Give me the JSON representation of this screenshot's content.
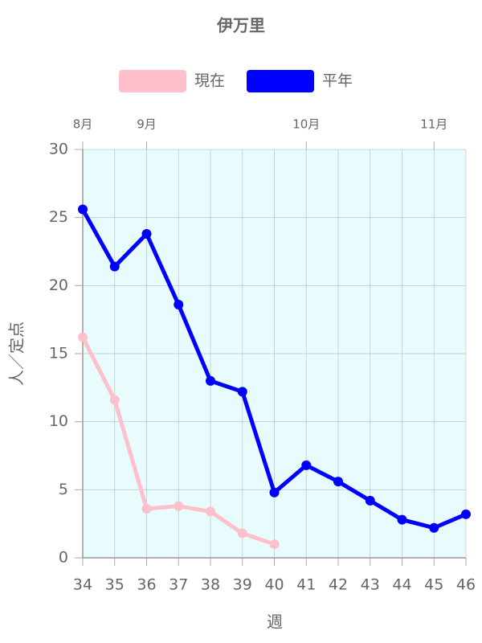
{
  "chart_data": {
    "type": "line",
    "title": "伊万里",
    "x_label": "週",
    "y_label": "人／定点",
    "x": [
      34,
      35,
      36,
      37,
      38,
      39,
      40,
      41,
      42,
      43,
      44,
      45,
      46
    ],
    "series": [
      {
        "name": "現在",
        "color": "#ffc0cb",
        "values": [
          16.2,
          11.6,
          3.6,
          3.8,
          3.4,
          1.8,
          1.0,
          null,
          null,
          null,
          null,
          null,
          null
        ]
      },
      {
        "name": "平年",
        "color": "#0000ff",
        "values": [
          25.6,
          21.4,
          23.8,
          18.6,
          13.0,
          12.2,
          4.8,
          6.8,
          5.6,
          4.2,
          2.8,
          2.2,
          3.2
        ]
      }
    ],
    "xlim": [
      34,
      46
    ],
    "xticks": [
      34,
      35,
      36,
      37,
      38,
      39,
      40,
      41,
      42,
      43,
      44,
      45,
      46
    ],
    "ylim": [
      0,
      30
    ],
    "yticks": [
      0,
      5,
      10,
      15,
      20,
      25,
      30
    ],
    "top_ticks": [
      {
        "value": 34,
        "label": "8月"
      },
      {
        "value": 36,
        "label": "9月"
      },
      {
        "value": 41,
        "label": "10月"
      },
      {
        "value": 45,
        "label": "11月"
      }
    ],
    "grid": true,
    "plot_background": "#e8fcfd",
    "legend": "top"
  }
}
